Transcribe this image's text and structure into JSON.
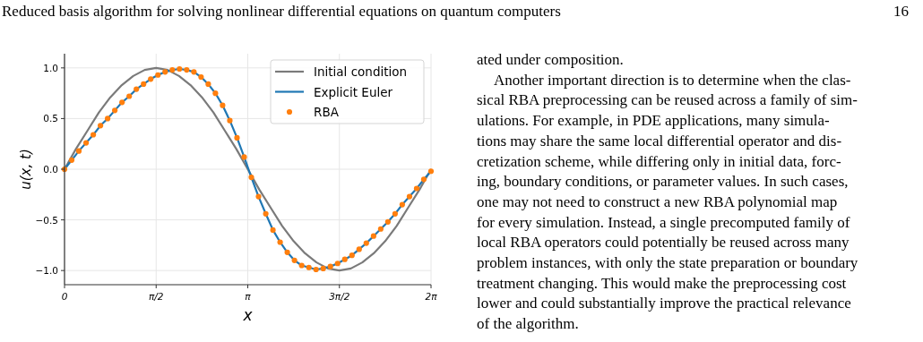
{
  "chart_data": {
    "type": "line",
    "xlabel": "x",
    "ylabel": "u(x, t)",
    "xlim": [
      0,
      6.2832
    ],
    "ylim": [
      -1.14,
      1.14
    ],
    "xticks": [
      {
        "value": 0,
        "label": "0"
      },
      {
        "value": 1.5708,
        "label": "π/2"
      },
      {
        "value": 3.1416,
        "label": "π"
      },
      {
        "value": 4.7124,
        "label": "3π/2"
      },
      {
        "value": 6.2832,
        "label": "2π"
      }
    ],
    "yticks": [
      {
        "value": -1,
        "label": "−1.0"
      },
      {
        "value": -0.5,
        "label": "−0.5"
      },
      {
        "value": 0,
        "label": "0.0"
      },
      {
        "value": 0.5,
        "label": "0.5"
      },
      {
        "value": 1,
        "label": "1.0"
      }
    ],
    "grid": true,
    "legend": "top right",
    "series": [
      {
        "name": "Initial condition",
        "color": "#7a7a7a",
        "marker": "none",
        "x": [
          0,
          0.196,
          0.393,
          0.589,
          0.785,
          0.982,
          1.178,
          1.374,
          1.571,
          1.767,
          1.963,
          2.16,
          2.356,
          2.553,
          2.749,
          2.945,
          3.142,
          3.338,
          3.534,
          3.731,
          3.927,
          4.123,
          4.32,
          4.516,
          4.712,
          4.909,
          5.105,
          5.301,
          5.498,
          5.694,
          5.89,
          6.087,
          6.283
        ],
        "values": [
          0,
          0.2,
          0.38,
          0.56,
          0.71,
          0.83,
          0.92,
          0.98,
          1.0,
          0.98,
          0.92,
          0.83,
          0.71,
          0.56,
          0.38,
          0.2,
          0,
          -0.2,
          -0.38,
          -0.56,
          -0.71,
          -0.83,
          -0.92,
          -0.98,
          -1.0,
          -0.98,
          -0.92,
          -0.83,
          -0.71,
          -0.56,
          -0.38,
          -0.2,
          0
        ]
      },
      {
        "name": "Explicit Euler",
        "color": "#1f77b4",
        "marker": "none",
        "x": [
          0,
          0.123,
          0.246,
          0.37,
          0.493,
          0.616,
          0.739,
          0.862,
          0.986,
          1.109,
          1.232,
          1.355,
          1.478,
          1.602,
          1.725,
          1.848,
          1.971,
          2.094,
          2.218,
          2.341,
          2.464,
          2.587,
          2.71,
          2.834,
          2.957,
          3.08,
          3.203,
          3.326,
          3.45,
          3.573,
          3.696,
          3.819,
          3.942,
          4.066,
          4.189,
          4.312,
          4.435,
          4.558,
          4.682,
          4.805,
          4.928,
          5.051,
          5.174,
          5.298,
          5.421,
          5.544,
          5.667,
          5.79,
          5.914,
          6.037,
          6.16,
          6.283
        ],
        "values": [
          0,
          0.09,
          0.18,
          0.26,
          0.34,
          0.43,
          0.5,
          0.58,
          0.66,
          0.72,
          0.79,
          0.84,
          0.89,
          0.93,
          0.96,
          0.98,
          0.99,
          0.98,
          0.96,
          0.91,
          0.84,
          0.75,
          0.63,
          0.48,
          0.31,
          0.12,
          -0.08,
          -0.27,
          -0.44,
          -0.6,
          -0.72,
          -0.82,
          -0.9,
          -0.95,
          -0.97,
          -0.99,
          -0.98,
          -0.96,
          -0.93,
          -0.89,
          -0.85,
          -0.79,
          -0.73,
          -0.66,
          -0.59,
          -0.52,
          -0.44,
          -0.35,
          -0.27,
          -0.19,
          -0.1,
          -0.02
        ]
      },
      {
        "name": "RBA",
        "type": "scatter",
        "color": "#ff7f0e",
        "marker": "circle",
        "x": [
          0,
          0.123,
          0.246,
          0.37,
          0.493,
          0.616,
          0.739,
          0.862,
          0.986,
          1.109,
          1.232,
          1.355,
          1.478,
          1.602,
          1.725,
          1.848,
          1.971,
          2.094,
          2.218,
          2.341,
          2.464,
          2.587,
          2.71,
          2.834,
          2.957,
          3.08,
          3.203,
          3.326,
          3.45,
          3.573,
          3.696,
          3.819,
          3.942,
          4.066,
          4.189,
          4.312,
          4.435,
          4.558,
          4.682,
          4.805,
          4.928,
          5.051,
          5.174,
          5.298,
          5.421,
          5.544,
          5.667,
          5.79,
          5.914,
          6.037,
          6.16,
          6.283
        ],
        "values": [
          0,
          0.09,
          0.18,
          0.26,
          0.34,
          0.43,
          0.5,
          0.58,
          0.66,
          0.72,
          0.79,
          0.84,
          0.89,
          0.93,
          0.96,
          0.98,
          0.99,
          0.98,
          0.96,
          0.91,
          0.84,
          0.75,
          0.63,
          0.48,
          0.31,
          0.12,
          -0.08,
          -0.27,
          -0.44,
          -0.6,
          -0.72,
          -0.82,
          -0.9,
          -0.95,
          -0.97,
          -0.99,
          -0.98,
          -0.96,
          -0.93,
          -0.89,
          -0.85,
          -0.79,
          -0.73,
          -0.66,
          -0.59,
          -0.52,
          -0.44,
          -0.35,
          -0.27,
          -0.19,
          -0.1,
          -0.02
        ]
      }
    ],
    "annotations": [
      "Reduced basis algorithm for solving nonlinear differential equations on quantum computers",
      "16",
      "ated under composition.",
      "Another important direction is to determine when the clas-",
      "sical RBA preprocessing can be reused across a family of sim-",
      "ulations. For example, in PDE applications, many simula-",
      "tions may share the same local differential operator and dis-",
      "cretization scheme, while differing only in initial data, forc-",
      "ing, boundary conditions, or parameter values. In such cases,",
      "one may not need to construct a new RBA polynomial map",
      "for every simulation. Instead, a single precomputed family of",
      "local RBA operators could potentially be reused across many",
      "problem instances, with only the state preparation or boundary",
      "treatment changing. This would make the preprocessing cost",
      "lower and could substantially improve the practical relevance",
      "of the algorithm."
    ]
  }
}
